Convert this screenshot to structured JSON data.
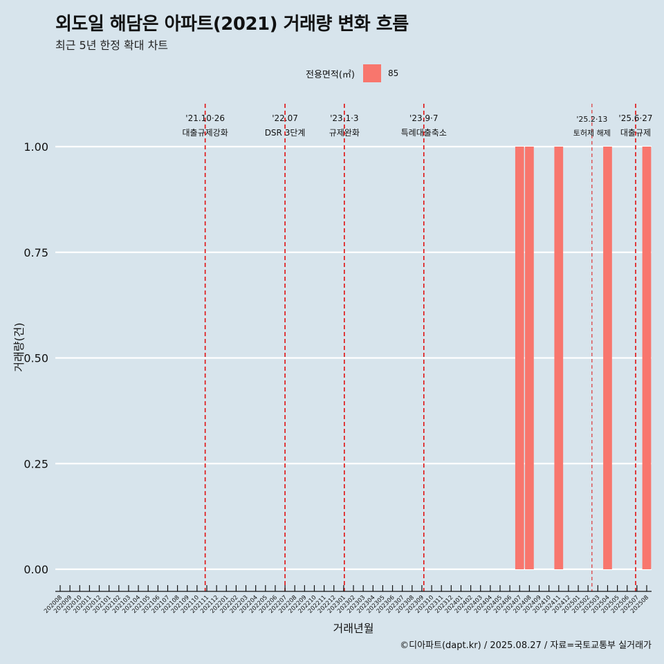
{
  "title": "외도일 해담은 아파트(2021) 거래량 변화 흐름",
  "subtitle": "최근 5년 한정 확대 차트",
  "caption": "©디아파트(dapt.kr) / 2025.08.27 / 자료=국토교통부 실거래가",
  "legend": {
    "title": "전용면적(㎡)",
    "items": [
      {
        "label": "85",
        "color": "#f8766d"
      }
    ]
  },
  "chart_data": {
    "type": "bar",
    "xlabel": "거래년월",
    "ylabel": "거래량(건)",
    "ylim": [
      0,
      1
    ],
    "yticks": [
      "0.00",
      "0.25",
      "0.50",
      "0.75",
      "1.00"
    ],
    "legend_position": "top",
    "grid": "horizontal",
    "categories": [
      "202008",
      "202009",
      "202010",
      "202011",
      "202012",
      "202101",
      "202102",
      "202103",
      "202104",
      "202105",
      "202106",
      "202107",
      "202108",
      "202109",
      "202110",
      "202111",
      "202112",
      "202201",
      "202202",
      "202203",
      "202204",
      "202205",
      "202206",
      "202207",
      "202208",
      "202209",
      "202210",
      "202211",
      "202212",
      "202301",
      "202302",
      "202303",
      "202304",
      "202305",
      "202306",
      "202307",
      "202308",
      "202309",
      "202310",
      "202311",
      "202312",
      "202401",
      "202402",
      "202403",
      "202404",
      "202405",
      "202406",
      "202407",
      "202408",
      "202409",
      "202410",
      "202411",
      "202412",
      "202501",
      "202502",
      "202503",
      "202504",
      "202505",
      "202506",
      "202507",
      "202508"
    ],
    "series": [
      {
        "name": "85",
        "color": "#f8766d",
        "values": [
          0,
          0,
          0,
          0,
          0,
          0,
          0,
          0,
          0,
          0,
          0,
          0,
          0,
          0,
          0,
          0,
          0,
          0,
          0,
          0,
          0,
          0,
          0,
          0,
          0,
          0,
          0,
          0,
          0,
          0,
          0,
          0,
          0,
          0,
          0,
          0,
          0,
          0,
          0,
          0,
          0,
          0,
          0,
          0,
          0,
          0,
          0,
          1,
          1,
          0,
          0,
          1,
          0,
          0,
          0,
          0,
          1,
          0,
          0,
          0,
          1
        ]
      }
    ],
    "annotations": [
      {
        "date": "2021-10-26",
        "line1": "'21.10·26",
        "line2": "대출규제강화",
        "style": "bold"
      },
      {
        "date": "2022-07-01",
        "line1": "'22.07",
        "line2": "DSR 3단계",
        "style": "bold"
      },
      {
        "date": "2023-01-03",
        "line1": "'23.1·3",
        "line2": "규제완화",
        "style": "bold"
      },
      {
        "date": "2023-09-07",
        "line1": "'23.9·7",
        "line2": "특례대출축소",
        "style": "bold"
      },
      {
        "date": "2025-02-13",
        "line1": "'25.2·13",
        "line2": "토허제 해제",
        "style": "thin"
      },
      {
        "date": "2025-06-27",
        "line1": "'25.6·27",
        "line2": "대출규제",
        "style": "bold"
      }
    ]
  }
}
